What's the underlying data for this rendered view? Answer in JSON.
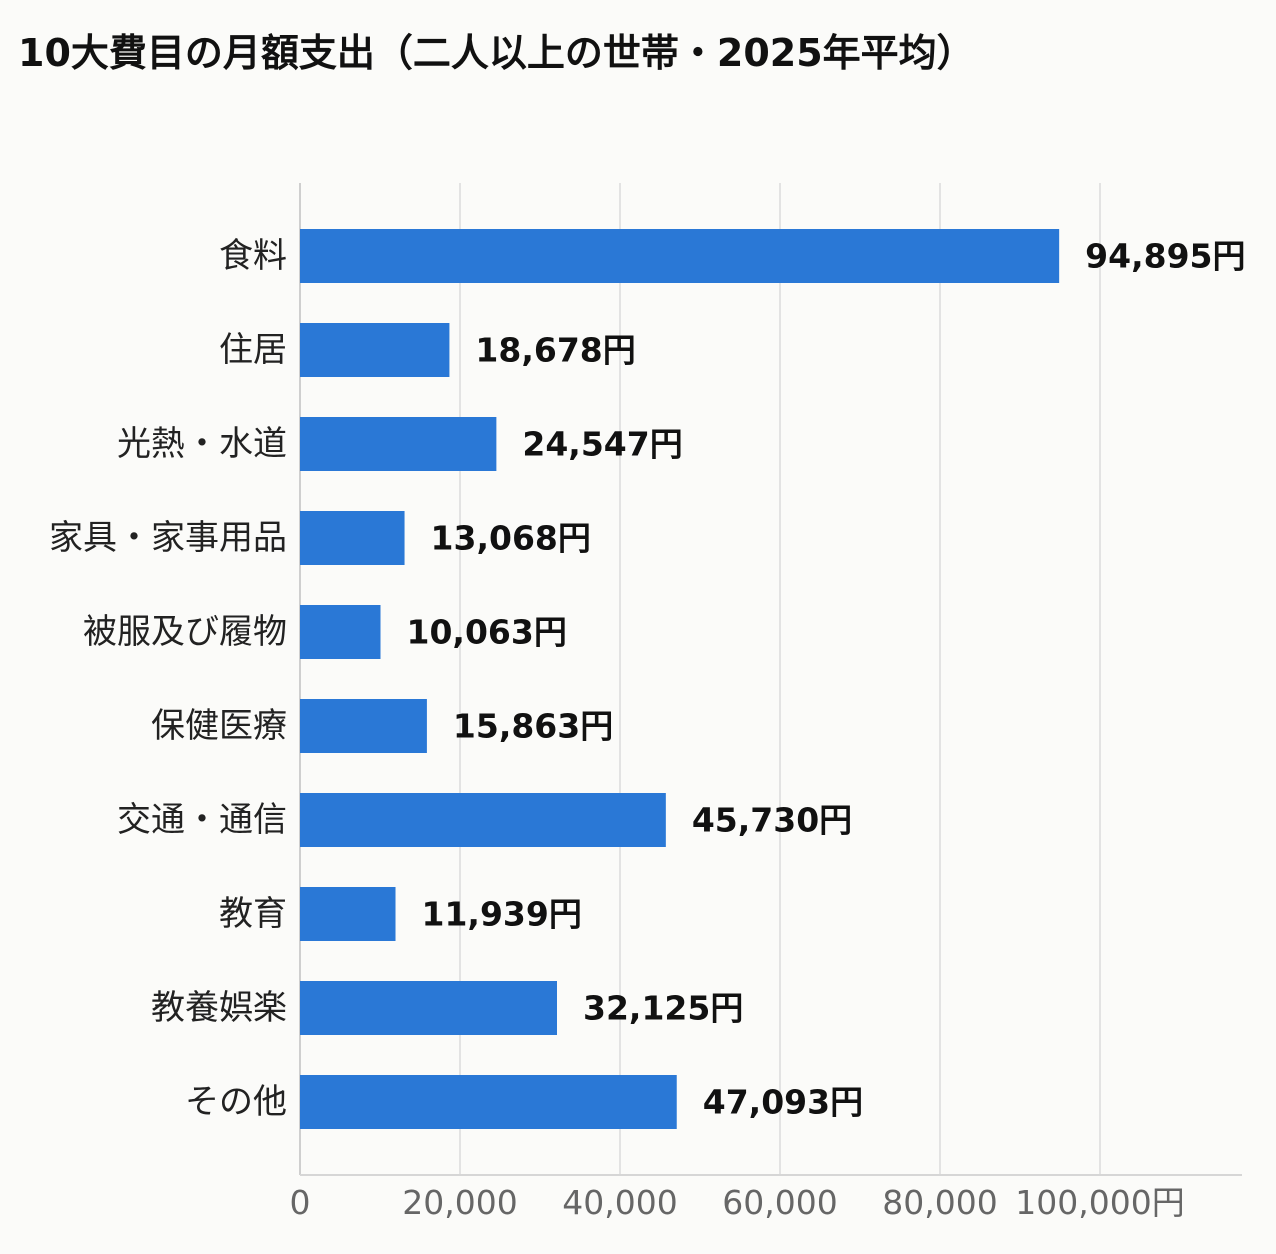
{
  "chart_data": {
    "type": "bar",
    "orientation": "horizontal",
    "title": "10大費目の月額支出（二人以上の世帯・2025年平均）",
    "categories": [
      "食料",
      "住居",
      "光熱・水道",
      "家具・家事用品",
      "被服及び履物",
      "保健医療",
      "交通・通信",
      "教育",
      "教養娯楽",
      "その他"
    ],
    "values": [
      94895,
      18678,
      24547,
      13068,
      10063,
      15863,
      45730,
      11939,
      32125,
      47093
    ],
    "value_labels": [
      "94,895円",
      "18,678円",
      "24,547円",
      "13,068円",
      "10,063円",
      "15,863円",
      "45,730円",
      "11,939円",
      "32,125円",
      "47,093円"
    ],
    "xlim": [
      0,
      117500
    ],
    "xticks": [
      0,
      20000,
      40000,
      60000,
      80000,
      100000
    ],
    "xtick_labels": [
      "0",
      "20,000",
      "40,000",
      "60,000",
      "80,000",
      "100,000円"
    ],
    "bar_color": "#2a78d6",
    "grid": true
  }
}
